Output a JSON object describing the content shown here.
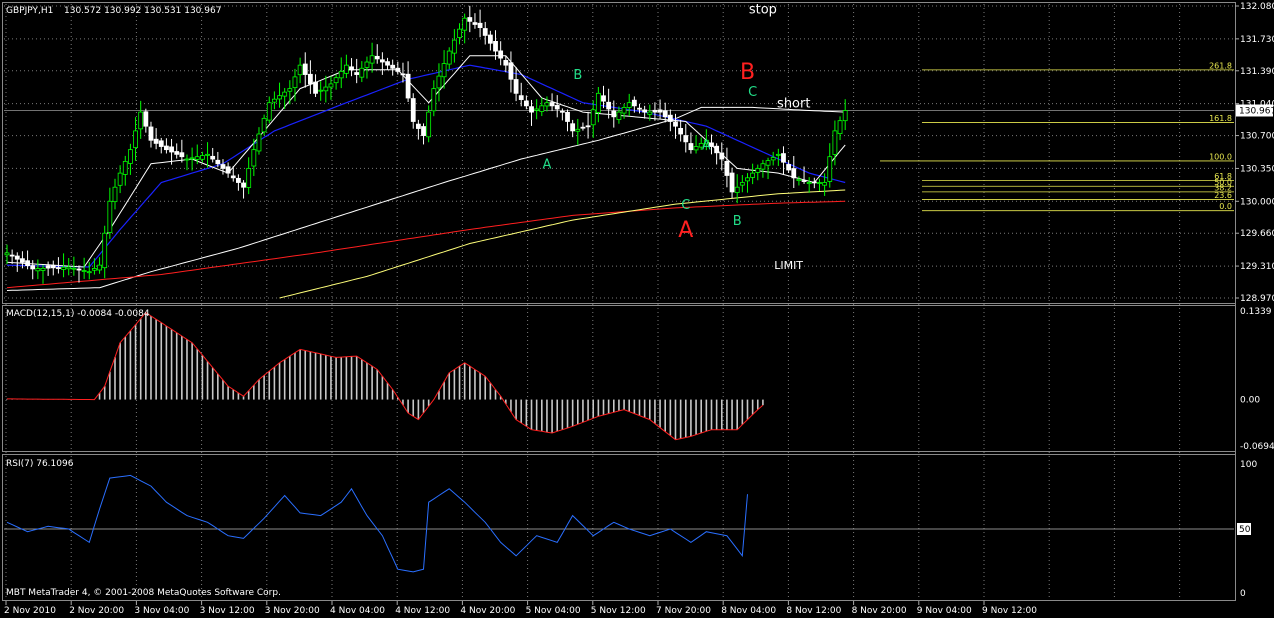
{
  "header": {
    "symbol": "GBPJPY,H1",
    "ohlc": "130.572 130.992 130.531 130.967",
    "macd_label": "MACD(12,15,1) -0.0084 -0.0084",
    "rsi_label": "RSI(7) 76.1096",
    "copyright": "MBT MetaTrader 4, © 2001-2008 MetaQuotes Software Corp."
  },
  "colors": {
    "bull": "#00ff00",
    "bear": "#ffffff",
    "grid": "#7a7a7a",
    "ma_fast": "#ffffff",
    "ma_blue": "#1a22ff",
    "ma_slow": "#ffffff",
    "ma_red": "#ff1f1f",
    "ma_yellow": "#ffff7a",
    "fib": "#e8e850",
    "macd_bars": "#c8c8c8",
    "macd_signal": "#ff2020",
    "rsi_line": "#2a6fff",
    "label_green": "#22dd88",
    "label_red": "#ff2020"
  },
  "chart_data": [
    {
      "type": "candlestick",
      "title": "GBPJPY,H1",
      "ylim": [
        128.97,
        132.08
      ],
      "y_ticks": [
        132.08,
        131.73,
        131.39,
        131.04,
        130.7,
        130.35,
        130.0,
        129.66,
        129.31,
        128.97
      ],
      "y_tick_labels": [
        "132.080",
        "131.730",
        "131.390",
        "131.040",
        "130.700",
        "130.350",
        "130.000",
        "129.660",
        "129.310",
        "128.970"
      ],
      "current_price": 130.967,
      "current_price_label": "130.967",
      "x_tick_labels": [
        "2 Nov 2010",
        "2 Nov 20:00",
        "3 Nov 04:00",
        "3 Nov 12:00",
        "3 Nov 20:00",
        "4 Nov 04:00",
        "4 Nov 12:00",
        "4 Nov 20:00",
        "5 Nov 04:00",
        "5 Nov 12:00",
        "7 Nov 20:00",
        "8 Nov 04:00",
        "8 Nov 12:00",
        "8 Nov 20:00",
        "9 Nov 04:00",
        "9 Nov 12:00"
      ],
      "bars": 164,
      "close_anchors": [
        [
          0,
          129.45
        ],
        [
          3,
          129.35
        ],
        [
          5,
          129.28
        ],
        [
          12,
          129.3
        ],
        [
          16,
          129.25
        ],
        [
          18,
          129.32
        ],
        [
          20,
          130.0
        ],
        [
          22,
          130.3
        ],
        [
          24,
          130.55
        ],
        [
          26,
          130.95
        ],
        [
          28,
          130.65
        ],
        [
          31,
          130.55
        ],
        [
          35,
          130.45
        ],
        [
          39,
          130.5
        ],
        [
          43,
          130.3
        ],
        [
          46,
          130.15
        ],
        [
          48,
          130.55
        ],
        [
          51,
          131.05
        ],
        [
          55,
          131.2
        ],
        [
          57,
          131.45
        ],
        [
          60,
          131.15
        ],
        [
          63,
          131.25
        ],
        [
          66,
          131.45
        ],
        [
          68,
          131.35
        ],
        [
          71,
          131.55
        ],
        [
          74,
          131.45
        ],
        [
          77,
          131.35
        ],
        [
          79,
          130.85
        ],
        [
          81,
          130.7
        ],
        [
          83,
          131.2
        ],
        [
          86,
          131.6
        ],
        [
          89,
          131.95
        ],
        [
          92,
          131.85
        ],
        [
          95,
          131.6
        ],
        [
          97,
          131.45
        ],
        [
          99,
          131.15
        ],
        [
          102,
          130.95
        ],
        [
          105,
          131.05
        ],
        [
          108,
          130.95
        ],
        [
          110,
          130.75
        ],
        [
          113,
          130.8
        ],
        [
          115,
          131.15
        ],
        [
          118,
          130.9
        ],
        [
          121,
          131.05
        ],
        [
          124,
          130.95
        ],
        [
          127,
          130.95
        ],
        [
          130,
          130.8
        ],
        [
          133,
          130.55
        ],
        [
          136,
          130.65
        ],
        [
          139,
          130.45
        ],
        [
          141,
          130.1
        ],
        [
          144,
          130.25
        ],
        [
          147,
          130.4
        ],
        [
          150,
          130.5
        ],
        [
          153,
          130.25
        ],
        [
          156,
          130.2
        ],
        [
          159,
          130.2
        ],
        [
          161,
          130.75
        ],
        [
          163,
          130.967
        ]
      ],
      "ma_fast_anchors": [
        [
          0,
          129.35
        ],
        [
          15,
          129.3
        ],
        [
          20,
          129.7
        ],
        [
          28,
          130.4
        ],
        [
          36,
          130.45
        ],
        [
          43,
          130.3
        ],
        [
          50,
          130.75
        ],
        [
          57,
          131.2
        ],
        [
          66,
          131.4
        ],
        [
          76,
          131.4
        ],
        [
          82,
          131.05
        ],
        [
          90,
          131.55
        ],
        [
          97,
          131.55
        ],
        [
          104,
          131.1
        ],
        [
          112,
          130.95
        ],
        [
          122,
          130.9
        ],
        [
          132,
          130.85
        ],
        [
          142,
          130.35
        ],
        [
          150,
          130.3
        ],
        [
          157,
          130.2
        ],
        [
          163,
          130.6
        ]
      ],
      "ma_blue_anchors": [
        [
          0,
          129.32
        ],
        [
          16,
          129.3
        ],
        [
          22,
          129.7
        ],
        [
          30,
          130.2
        ],
        [
          42,
          130.4
        ],
        [
          52,
          130.75
        ],
        [
          66,
          131.05
        ],
        [
          78,
          131.3
        ],
        [
          90,
          131.45
        ],
        [
          100,
          131.35
        ],
        [
          112,
          131.05
        ],
        [
          124,
          130.95
        ],
        [
          136,
          130.8
        ],
        [
          146,
          130.55
        ],
        [
          156,
          130.3
        ],
        [
          163,
          130.2
        ]
      ],
      "ma_slow_anchors": [
        [
          0,
          129.05
        ],
        [
          18,
          129.08
        ],
        [
          28,
          129.25
        ],
        [
          45,
          129.5
        ],
        [
          65,
          129.85
        ],
        [
          85,
          130.2
        ],
        [
          100,
          130.45
        ],
        [
          115,
          130.65
        ],
        [
          130,
          130.88
        ],
        [
          135,
          131.0
        ],
        [
          145,
          131.0
        ],
        [
          155,
          130.97
        ],
        [
          163,
          130.95
        ]
      ],
      "ma_red_anchors": [
        [
          0,
          129.08
        ],
        [
          30,
          129.22
        ],
        [
          60,
          129.45
        ],
        [
          90,
          129.7
        ],
        [
          110,
          129.85
        ],
        [
          130,
          129.93
        ],
        [
          150,
          129.98
        ],
        [
          163,
          130.0
        ]
      ],
      "ma_yellow_anchors": [
        [
          53,
          128.97
        ],
        [
          70,
          129.2
        ],
        [
          90,
          129.55
        ],
        [
          110,
          129.8
        ],
        [
          130,
          129.97
        ],
        [
          150,
          130.08
        ],
        [
          163,
          130.12
        ]
      ],
      "fib_levels": [
        {
          "label": "261.8",
          "price": 131.4
        },
        {
          "label": "161.8",
          "price": 130.84
        },
        {
          "label": "100.0",
          "price": 130.43
        },
        {
          "label": "61.8",
          "price": 130.22
        },
        {
          "label": "50.0",
          "price": 130.16
        },
        {
          "label": "38.2",
          "price": 130.1
        },
        {
          "label": "23.6",
          "price": 130.02
        },
        {
          "label": "0.0",
          "price": 129.9
        }
      ],
      "annotations": [
        {
          "text": "stop",
          "bar": 147,
          "price": 132.0,
          "color": "#ffffff",
          "size": "medium"
        },
        {
          "text": "short",
          "bar": 153,
          "price": 131.0,
          "color": "#ffffff",
          "size": "medium"
        },
        {
          "text": "LIMIT",
          "bar": 152,
          "price": 129.28,
          "color": "#ffffff",
          "size": "small"
        },
        {
          "text": "A",
          "bar": 105,
          "price": 130.35,
          "color": "#22dd88",
          "size": "medium"
        },
        {
          "text": "B",
          "bar": 111,
          "price": 131.3,
          "color": "#22dd88",
          "size": "medium"
        },
        {
          "text": "A",
          "bar": 136,
          "price": 130.55,
          "color": "#22dd88",
          "size": "medium"
        },
        {
          "text": "C",
          "bar": 132,
          "price": 129.92,
          "color": "#22dd88",
          "size": "medium"
        },
        {
          "text": "B",
          "bar": 142,
          "price": 129.75,
          "color": "#22dd88",
          "size": "medium"
        },
        {
          "text": "C",
          "bar": 145,
          "price": 131.12,
          "color": "#22dd88",
          "size": "medium"
        },
        {
          "text": "A",
          "bar": 132,
          "price": 129.62,
          "color": "#ff2020",
          "size": "large"
        },
        {
          "text": "B",
          "bar": 144,
          "price": 131.3,
          "color": "#ff2020",
          "size": "large"
        }
      ]
    },
    {
      "type": "bar",
      "title": "MACD(12,15,1) -0.0084 -0.0084",
      "ylim": [
        -0.0694,
        0.1339
      ],
      "y_tick_labels": [
        "0.1339",
        "0.00",
        "-0.0694"
      ],
      "y_ticks": [
        0.1339,
        0.0,
        -0.0694
      ],
      "value_anchors": [
        [
          0,
          0.001
        ],
        [
          17,
          0.0
        ],
        [
          19,
          0.02
        ],
        [
          22,
          0.085
        ],
        [
          27,
          0.13
        ],
        [
          31,
          0.11
        ],
        [
          36,
          0.085
        ],
        [
          43,
          0.02
        ],
        [
          46,
          0.005
        ],
        [
          49,
          0.03
        ],
        [
          53,
          0.055
        ],
        [
          57,
          0.075
        ],
        [
          60,
          0.07
        ],
        [
          64,
          0.063
        ],
        [
          68,
          0.065
        ],
        [
          72,
          0.045
        ],
        [
          75,
          0.015
        ],
        [
          78,
          -0.02
        ],
        [
          80,
          -0.03
        ],
        [
          83,
          0.0
        ],
        [
          86,
          0.04
        ],
        [
          89,
          0.055
        ],
        [
          93,
          0.035
        ],
        [
          96,
          0.005
        ],
        [
          99,
          -0.03
        ],
        [
          102,
          -0.045
        ],
        [
          106,
          -0.05
        ],
        [
          110,
          -0.04
        ],
        [
          115,
          -0.025
        ],
        [
          120,
          -0.015
        ],
        [
          125,
          -0.03
        ],
        [
          130,
          -0.06
        ],
        [
          133,
          -0.055
        ],
        [
          137,
          -0.045
        ],
        [
          142,
          -0.045
        ],
        [
          146,
          -0.015
        ],
        [
          147,
          -0.0084
        ]
      ]
    },
    {
      "type": "line",
      "title": "RSI(7) 76.1096",
      "ylim": [
        0,
        100
      ],
      "y_tick_labels": [
        "100",
        "50",
        "0"
      ],
      "y_ticks": [
        100,
        50,
        0
      ],
      "level": 50,
      "value_anchors": [
        [
          0,
          55
        ],
        [
          4,
          48
        ],
        [
          8,
          52
        ],
        [
          12,
          50
        ],
        [
          16,
          40
        ],
        [
          18,
          65
        ],
        [
          20,
          88
        ],
        [
          24,
          90
        ],
        [
          28,
          82
        ],
        [
          31,
          70
        ],
        [
          35,
          60
        ],
        [
          39,
          55
        ],
        [
          43,
          45
        ],
        [
          46,
          43
        ],
        [
          50,
          58
        ],
        [
          54,
          75
        ],
        [
          57,
          62
        ],
        [
          61,
          60
        ],
        [
          65,
          70
        ],
        [
          67,
          80
        ],
        [
          70,
          60
        ],
        [
          73,
          45
        ],
        [
          76,
          20
        ],
        [
          79,
          18
        ],
        [
          81,
          20
        ],
        [
          82,
          70
        ],
        [
          86,
          80
        ],
        [
          89,
          70
        ],
        [
          93,
          55
        ],
        [
          96,
          40
        ],
        [
          99,
          30
        ],
        [
          103,
          45
        ],
        [
          107,
          40
        ],
        [
          110,
          60
        ],
        [
          114,
          45
        ],
        [
          118,
          55
        ],
        [
          121,
          50
        ],
        [
          125,
          45
        ],
        [
          129,
          50
        ],
        [
          133,
          40
        ],
        [
          136,
          48
        ],
        [
          140,
          45
        ],
        [
          143,
          30
        ],
        [
          144,
          76
        ]
      ]
    }
  ]
}
